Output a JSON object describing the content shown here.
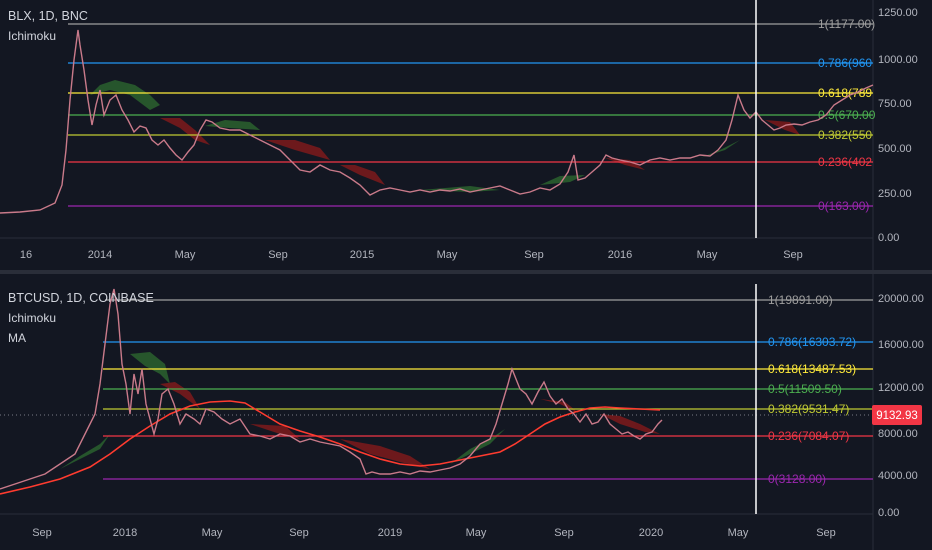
{
  "top": {
    "symbol": "BLX, 1D, BNC",
    "indicators": [
      "Ichimoku"
    ],
    "price_ticks": [
      "1250.00",
      "1000.00",
      "750.00",
      "500.00",
      "250.00",
      "0.00"
    ],
    "time_ticks": [
      "16",
      "2014",
      "May",
      "Sep",
      "2015",
      "May",
      "Sep",
      "2016",
      "May",
      "Sep"
    ],
    "fib_levels": [
      {
        "label": "1(1177.00)",
        "color": "#9e9e9e"
      },
      {
        "label": "0.786(960",
        "color": "#2196f3"
      },
      {
        "label": "0.618(789",
        "color": "#ffeb3b"
      },
      {
        "label": "0.5(670.00",
        "color": "#4caf50"
      },
      {
        "label": "0.382(550",
        "color": "#c0ca33"
      },
      {
        "label": "0.236(402",
        "color": "#f23645"
      },
      {
        "label": "0(163.00)",
        "color": "#9c27b0"
      }
    ]
  },
  "bottom": {
    "symbol": "BTCUSD, 1D, COINBASE",
    "indicators": [
      "Ichimoku",
      "MA"
    ],
    "price_ticks": [
      "20000.00",
      "16000.00",
      "12000.00",
      "8000.00",
      "4000.00",
      "0.00"
    ],
    "time_ticks": [
      "Sep",
      "2018",
      "May",
      "Sep",
      "2019",
      "May",
      "Sep",
      "2020",
      "May",
      "Sep"
    ],
    "current_price": "9132.93",
    "fib_levels": [
      {
        "label": "1(19891.00)",
        "color": "#9e9e9e"
      },
      {
        "label": "0.786(16303.72)",
        "color": "#2196f3"
      },
      {
        "label": "0.618(13487.53)",
        "color": "#ffeb3b"
      },
      {
        "label": "0.5(11509.50)",
        "color": "#4caf50"
      },
      {
        "label": "0.382(9531.47)",
        "color": "#c0ca33"
      },
      {
        "label": "0.236(7084.07)",
        "color": "#f23645"
      },
      {
        "label": "0(3128.00)",
        "color": "#9c27b0"
      }
    ]
  },
  "colors": {
    "background": "#131722",
    "candle_up": "#4a7a3f",
    "candle_down": "#e08a9a",
    "ma_line": "#ff3b2f",
    "price_badge": "#f23645"
  }
}
